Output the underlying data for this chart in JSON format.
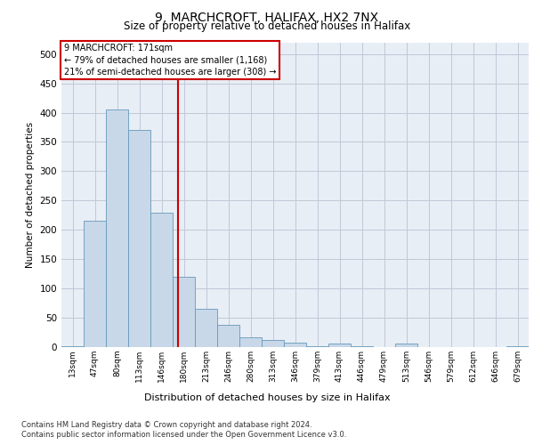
{
  "title_line1": "9, MARCHCROFT, HALIFAX, HX2 7NX",
  "title_line2": "Size of property relative to detached houses in Halifax",
  "xlabel": "Distribution of detached houses by size in Halifax",
  "ylabel": "Number of detached properties",
  "bar_labels": [
    "13sqm",
    "47sqm",
    "80sqm",
    "113sqm",
    "146sqm",
    "180sqm",
    "213sqm",
    "246sqm",
    "280sqm",
    "313sqm",
    "346sqm",
    "379sqm",
    "413sqm",
    "446sqm",
    "479sqm",
    "513sqm",
    "546sqm",
    "579sqm",
    "612sqm",
    "646sqm",
    "679sqm"
  ],
  "bar_values": [
    2,
    215,
    405,
    370,
    230,
    120,
    65,
    38,
    17,
    12,
    7,
    2,
    6,
    1,
    0,
    6,
    0,
    0,
    0,
    0,
    1
  ],
  "bar_color": "#c8d8e8",
  "bar_edge_color": "#6699bb",
  "grid_color": "#c0c8d8",
  "background_color": "#e8eef5",
  "vline_x_index": 4.75,
  "vline_color": "#cc0000",
  "annotation_line1": "9 MARCHCROFT: 171sqm",
  "annotation_line2": "← 79% of detached houses are smaller (1,168)",
  "annotation_line3": "21% of semi-detached houses are larger (308) →",
  "annotation_box_color": "#cc0000",
  "ylim": [
    0,
    520
  ],
  "yticks": [
    0,
    50,
    100,
    150,
    200,
    250,
    300,
    350,
    400,
    450,
    500
  ],
  "footer_line1": "Contains HM Land Registry data © Crown copyright and database right 2024.",
  "footer_line2": "Contains public sector information licensed under the Open Government Licence v3.0."
}
